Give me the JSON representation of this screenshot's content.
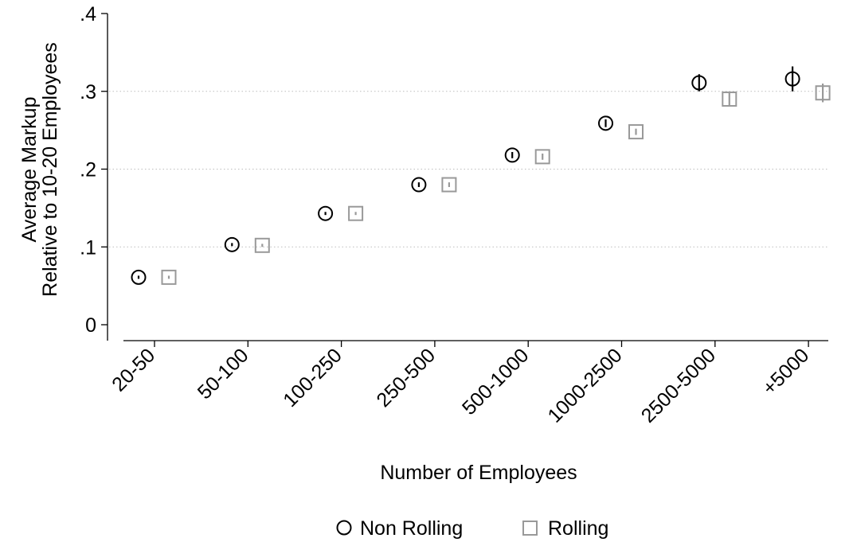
{
  "chart_data": {
    "type": "scatter",
    "categories": [
      "20-50",
      "50-100",
      "100-250",
      "250-500",
      "500-1000",
      "1000-2500",
      "2500-5000",
      "+5000"
    ],
    "series": [
      {
        "name": "Non Rolling",
        "marker": "circle",
        "color": "#000000",
        "values": [
          0.061,
          0.103,
          0.143,
          0.18,
          0.218,
          0.259,
          0.311,
          0.316
        ],
        "ci_low": [
          0.059,
          0.101,
          0.141,
          0.177,
          0.214,
          0.254,
          0.3,
          0.3
        ],
        "ci_high": [
          0.063,
          0.105,
          0.145,
          0.183,
          0.222,
          0.264,
          0.322,
          0.332
        ]
      },
      {
        "name": "Rolling",
        "marker": "square",
        "color": "#999999",
        "values": [
          0.061,
          0.102,
          0.143,
          0.18,
          0.216,
          0.248,
          0.29,
          0.298
        ],
        "ci_low": [
          0.059,
          0.1,
          0.141,
          0.177,
          0.212,
          0.244,
          0.281,
          0.286
        ],
        "ci_high": [
          0.063,
          0.104,
          0.145,
          0.183,
          0.22,
          0.252,
          0.299,
          0.31
        ]
      }
    ],
    "yticks": [
      {
        "value": 0,
        "label": "0"
      },
      {
        "value": 0.1,
        "label": ".1"
      },
      {
        "value": 0.2,
        "label": ".2"
      },
      {
        "value": 0.3,
        "label": ".3"
      },
      {
        "value": 0.4,
        "label": ".4"
      }
    ],
    "ylim": [
      0,
      0.4
    ],
    "xlabel": "Number of Employees",
    "ylabel_lines": [
      "Average Markup",
      "Relative to 10-20 Employees"
    ],
    "grid": "horizontal dotted",
    "legend_position": "bottom-center"
  }
}
